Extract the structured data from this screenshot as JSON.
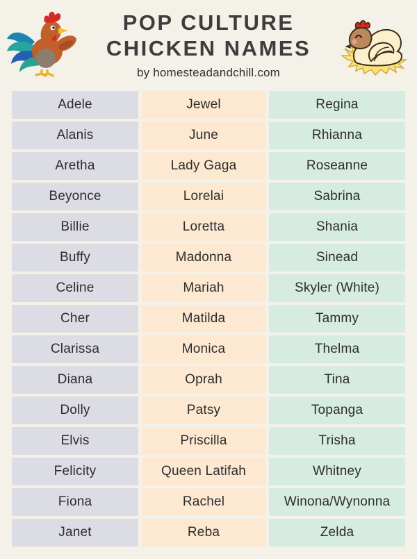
{
  "page": {
    "background": "#f4f1e9"
  },
  "header": {
    "title_line1": "POP CULTURE",
    "title_line2": "CHICKEN NAMES",
    "subtitle": "by homesteadandchill.com",
    "title_color": "#3d3d3d",
    "icons": [
      "rooster-illustration",
      "hen-on-nest-illustration"
    ]
  },
  "table": {
    "columns": [
      {
        "name": "column-1",
        "bg": "#dcdce5"
      },
      {
        "name": "column-2",
        "bg": "#fde8d1"
      },
      {
        "name": "column-3",
        "bg": "#d6ece1"
      }
    ],
    "rows": [
      [
        "Adele",
        "Jewel",
        "Regina"
      ],
      [
        "Alanis",
        "June",
        "Rhianna"
      ],
      [
        "Aretha",
        "Lady Gaga",
        "Roseanne"
      ],
      [
        "Beyonce",
        "Lorelai",
        "Sabrina"
      ],
      [
        "Billie",
        "Loretta",
        "Shania"
      ],
      [
        "Buffy",
        "Madonna",
        "Sinead"
      ],
      [
        "Celine",
        "Mariah",
        "Skyler (White)"
      ],
      [
        "Cher",
        "Matilda",
        "Tammy"
      ],
      [
        "Clarissa",
        "Monica",
        "Thelma"
      ],
      [
        "Diana",
        "Oprah",
        "Tina"
      ],
      [
        "Dolly",
        "Patsy",
        "Topanga"
      ],
      [
        "Elvis",
        "Priscilla",
        "Trisha"
      ],
      [
        "Felicity",
        "Queen Latifah",
        "Whitney"
      ],
      [
        "Fiona",
        "Rachel",
        "Winona/Wynonna"
      ],
      [
        "Janet",
        "Reba",
        "Zelda"
      ]
    ]
  }
}
